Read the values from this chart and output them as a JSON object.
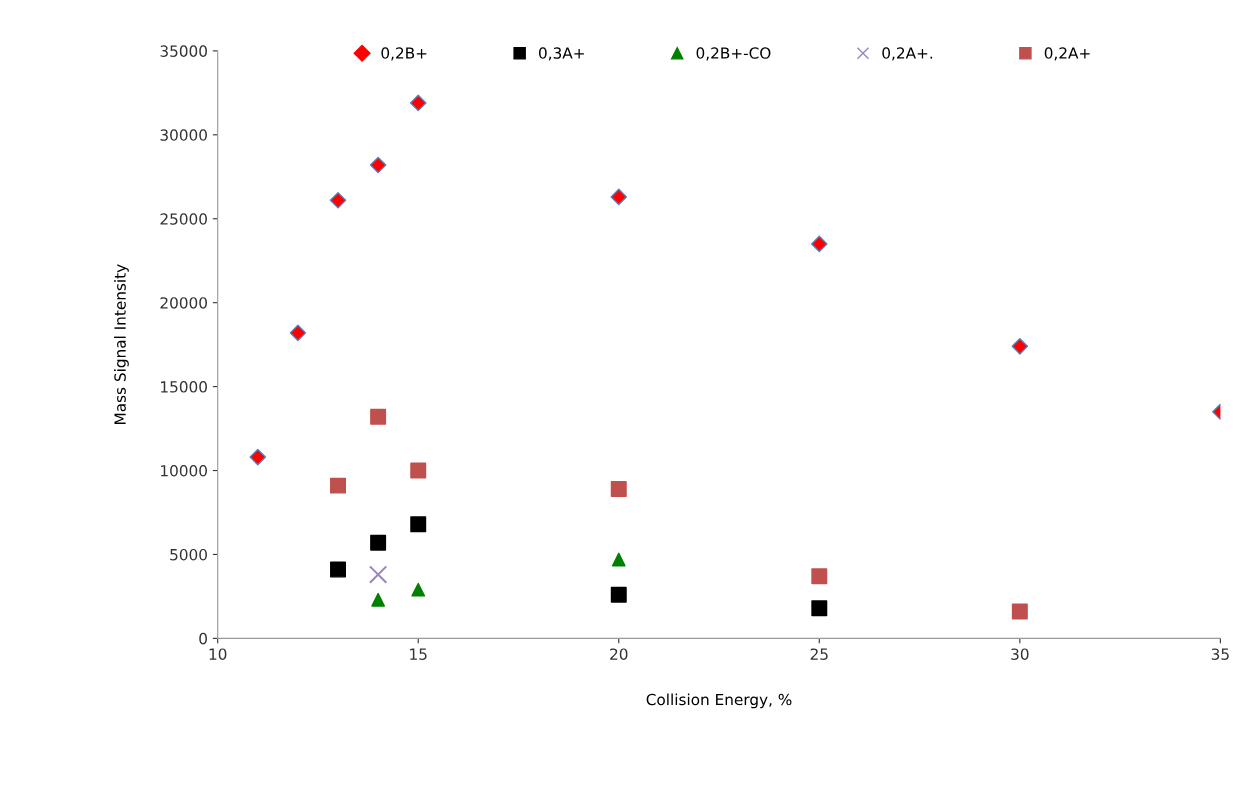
{
  "chart_data": {
    "type": "scatter",
    "xlabel": "Collision Energy, %",
    "ylabel": "Mass Signal Intensity",
    "xlim": [
      10,
      35
    ],
    "xticks": [
      10,
      15,
      20,
      25,
      30,
      35
    ],
    "ylim": [
      0,
      35000
    ],
    "yticks": [
      0,
      5000,
      10000,
      15000,
      20000,
      25000,
      30000,
      35000
    ],
    "grid": false,
    "legend": "top",
    "series": [
      {
        "name": "0,2B+",
        "color": "#ff0000",
        "marker": "diamond",
        "x": [
          11,
          12,
          13,
          14,
          15,
          20,
          25,
          30,
          35
        ],
        "values": [
          10800,
          18200,
          26100,
          28200,
          31900,
          26300,
          23500,
          17400,
          13500
        ]
      },
      {
        "name": "0,3A+",
        "color": "#000000",
        "marker": "square",
        "x": [
          13,
          14,
          15,
          20,
          25
        ],
        "values": [
          4100,
          5700,
          6800,
          2600,
          1800
        ]
      },
      {
        "name": "0,2B+-CO",
        "color": "#008000",
        "marker": "triangle",
        "x": [
          14,
          15,
          20
        ],
        "values": [
          2300,
          2900,
          4700
        ]
      },
      {
        "name": "0,2A+.",
        "color": "#9a85c4",
        "marker": "cross",
        "x": [
          14
        ],
        "values": [
          3800
        ]
      },
      {
        "name": "0,2A+",
        "color": "#c0504d",
        "marker": "square",
        "x": [
          13,
          14,
          15,
          20,
          25,
          30
        ],
        "values": [
          9100,
          13200,
          10000,
          8900,
          3700,
          1600
        ]
      }
    ]
  }
}
